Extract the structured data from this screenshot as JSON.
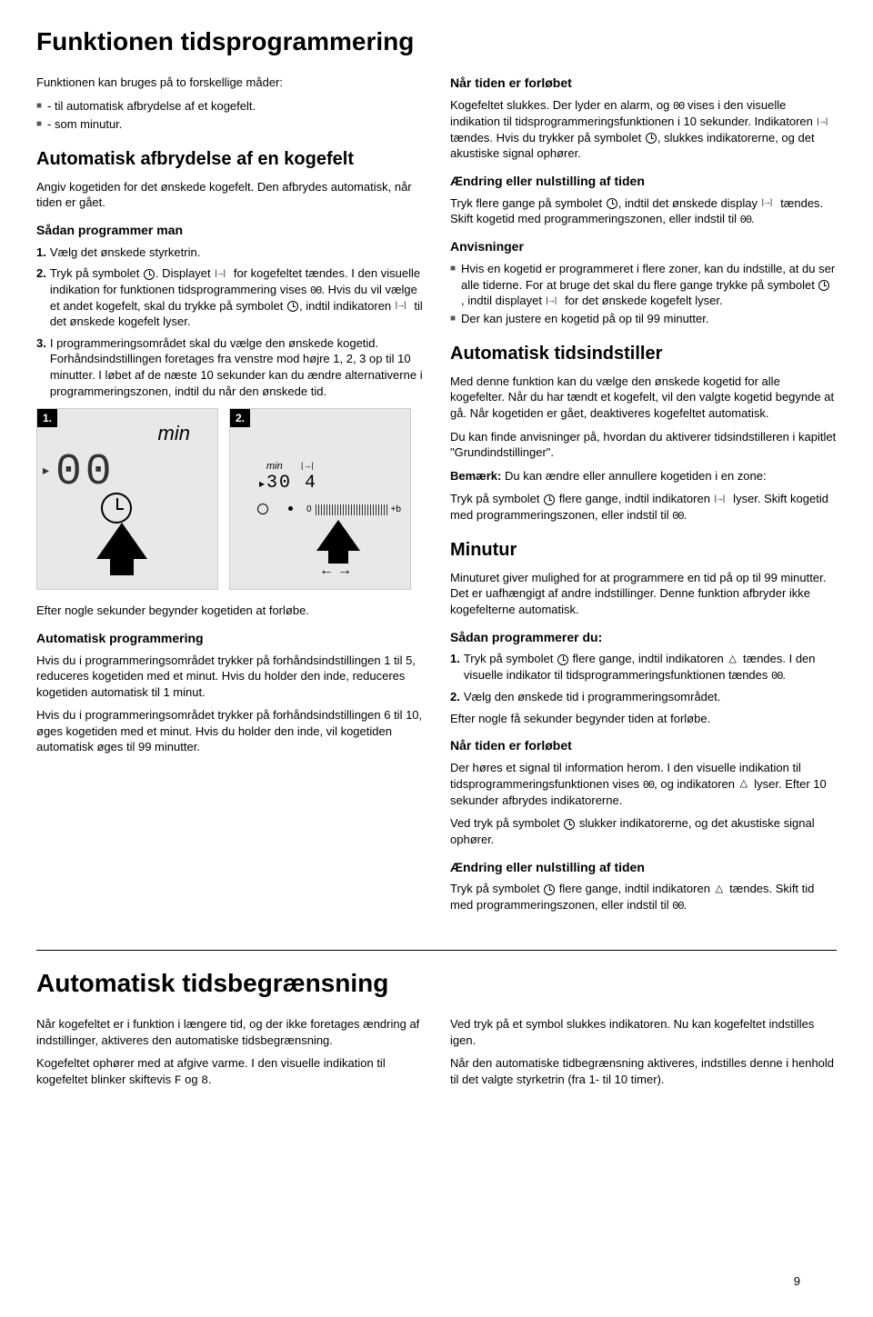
{
  "section1": {
    "title": "Funktionen tidsprogrammering",
    "left": {
      "intro": "Funktionen kan bruges på to forskellige måder:",
      "bullets": [
        "- til automatisk afbrydelse af et kogefelt.",
        "- som minutur."
      ],
      "h_auto": "Automatisk afbrydelse af en kogefelt",
      "p_auto": "Angiv kogetiden for det ønskede kogefelt. Den afbrydes automatisk, når tiden er gået.",
      "h_sadan": "Sådan programmer man",
      "step1": "Vælg det ønskede styrketrin.",
      "step2a": "Tryk på symbolet ",
      "step2b": ". Displayet ",
      "step2c": " for kogefeltet tændes. I den visuelle indikation for funktionen tidsprogrammering vises ",
      "step2d": ". Hvis du vil vælge et andet kogefelt, skal du trykke på symbolet ",
      "step2e": ", indtil indikatoren ",
      "step2f": " til det ønskede kogefelt lyser.",
      "step3": "I programmeringsområdet skal du vælge den ønskede kogetid. Forhåndsindstillingen foretages fra venstre mod højre 1, 2, 3 op til 10 minutter. I løbet af de næste  10 sekunder kan du ændre alternativerne i programmeringszonen, indtil du når den ønskede tid.",
      "fig1": {
        "num": "1.",
        "min": "min",
        "disp": "00"
      },
      "fig2": {
        "num": "2.",
        "min": "min",
        "seg": "30",
        "seg2": "4",
        "zero": "0",
        "plusb": "+b"
      },
      "after_fig": "Efter nogle sekunder begynder kogetiden at forløbe.",
      "h_autoprog": "Automatisk programmering",
      "p_ap1": "Hvis du i programmeringsområdet trykker på forhåndsindstillingen 1 til 5, reduceres kogetiden med et minut. Hvis du holder den inde, reduceres kogetiden automatisk til  1 minut.",
      "p_ap2": "Hvis du i programmeringsområdet trykker på forhåndsindstillingen 6 til 10, øges kogetiden med et minut. Hvis du holder den inde, vil kogetiden automatisk øges til  99 minutter."
    },
    "right": {
      "h_nar": "Når tiden er forløbet",
      "p_nar_a": "Kogefeltet slukkes. Der lyder en alarm, og ",
      "p_nar_b": " vises i den visuelle indikation til tidsprogrammeringsfunktionen i  10 sekunder. Indikatoren ",
      "p_nar_c": " tændes. Hvis du trykker på symbolet ",
      "p_nar_d": ", slukkes indikatorerne, og det akustiske signal ophører.",
      "h_aendr": "Ændring eller nulstilling af tiden",
      "p_ae_a": "Tryk flere gange på symbolet ",
      "p_ae_b": ", indtil det ønskede display ",
      "p_ae_c": " tændes. Skift kogetid med programmeringszonen, eller indstil  til ",
      "p_ae_d": ".",
      "h_anv": "Anvisninger",
      "anv1a": "Hvis en kogetid er programmeret i flere zoner, kan du indstille,  at du ser alle tiderne. For at bruge det skal du flere gange trykke på symbolet ",
      "anv1b": " , indtil displayet ",
      "anv1c": " for det ønskede kogefelt lyser.",
      "anv2": "Der kan justere en kogetid på op til 99 minutter.",
      "h_autoind": "Automatisk tidsindstiller",
      "p_ai1": "Med denne funktion kan du vælge den ønskede kogetid for alle kogefelter. Når du har tændt et kogefelt, vil den valgte kogetid begynde at gå. Når kogetiden er gået, deaktiveres kogefeltet automatisk.",
      "p_ai2": "Du kan finde anvisninger på, hvordan du aktiverer tidsindstilleren i kapitlet \"Grundindstillinger\".",
      "bemark_label": "Bemærk:",
      "bemark_text": " Du kan ændre eller annullere kogetiden i en zone:",
      "p_ai3a": "Tryk på symbolet ",
      "p_ai3b": " flere gange, indtil indikatoren ",
      "p_ai3c": " lyser. Skift kogetid med programmeringszonen, eller indstil til ",
      "p_ai3d": ".",
      "h_minutur": "Minutur",
      "p_min": "Minuturet giver mulighed for at programmere en tid på op til  99 minutter. Det er uafhængigt af andre indstillinger. Denne funktion afbryder ikke kogefelterne automatisk.",
      "h_sadan2": "Sådan programmerer du:",
      "m_step1a": "Tryk på symbolet ",
      "m_step1b": " flere gange, indtil indikatoren ",
      "m_step1c": " tændes. I den visuelle indikator til tidsprogrammeringsfunktionen tændes ",
      "m_step1d": ".",
      "m_step2": "Vælg den ønskede tid i programmeringsområdet.",
      "m_after": "Efter nogle få sekunder begynder tiden at forløbe.",
      "h_nar2": "Når tiden er forløbet",
      "p_nar2a": "Der høres et signal til information herom. I den visuelle indikation til tidsprogrammeringsfunktionen vises ",
      "p_nar2b": ", og indikatoren ",
      "p_nar2c": " lyser. Efter 10 sekunder afbrydes indikatorerne.",
      "p_nar2d": "Ved tryk på symbolet ",
      "p_nar2e": " slukker indikatorerne, og det akustiske signal ophører.",
      "h_aendr2": "Ændring eller nulstilling af tiden",
      "p_ae2a": "Tryk på symbolet ",
      "p_ae2b": " flere gange, indtil indikatoren ",
      "p_ae2c": " tændes. Skift tid med programmeringszonen, eller indstil til ",
      "p_ae2d": "."
    }
  },
  "section2": {
    "title": "Automatisk tidsbegrænsning",
    "left": {
      "p1": "Når kogefeltet er i funktion i længere tid, og der ikke foretages ændring af indstillinger, aktiveres den automatiske tidsbegrænsning.",
      "p2a": "Kogefeltet ophører med at afgive varme. I den  visuelle indikation til kogefeltet blinker skiftevis ",
      "p2_F": "F",
      "p2_og": " og ",
      "p2_8": "8",
      "p2_end": "."
    },
    "right": {
      "p1": "Ved tryk på et symbol slukkes indikatoren. Nu kan kogefeltet indstilles igen.",
      "p2": "Når den automatiske tidbegrænsning aktiveres, indstilles denne i henhold til det valgte styrketrin (fra 1- til 10 timer)."
    }
  },
  "page_number": "9"
}
